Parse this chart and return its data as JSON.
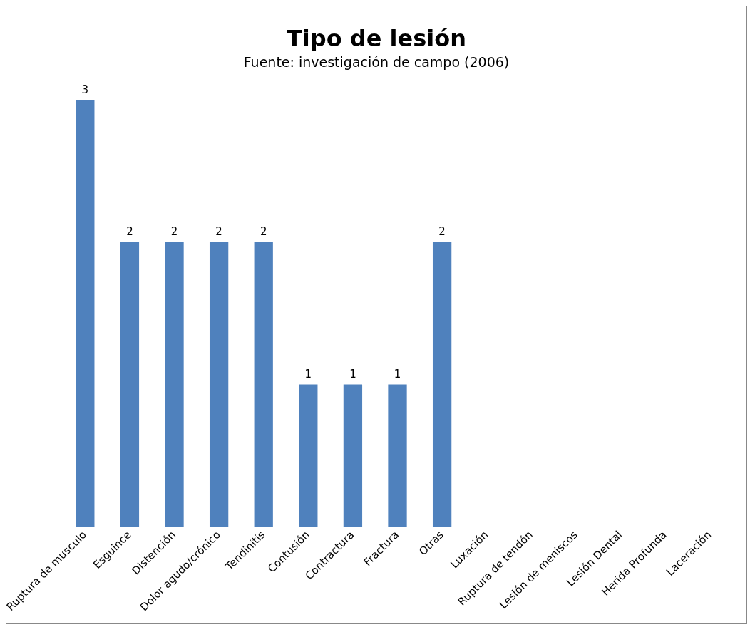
{
  "chart_data": {
    "type": "bar",
    "title": "Tipo de lesión",
    "subtitle": "Fuente: investigación de campo (2006)",
    "categories": [
      "Ruptura de musculo",
      "Esguince",
      "Distención",
      "Dolor agudo/crónico",
      "Tendinitis",
      "Contusión",
      "Contractura",
      "Fractura",
      "Otras",
      "Luxación",
      "Ruptura de tendón",
      "Lesión de meniscos",
      "Lesión Dental",
      "Herida Profunda",
      "Laceración"
    ],
    "values": [
      3,
      2,
      2,
      2,
      2,
      1,
      1,
      1,
      2,
      null,
      null,
      null,
      null,
      null,
      null
    ],
    "value_labels": [
      "3",
      "2",
      "2",
      "2",
      "2",
      "1",
      "1",
      "1",
      "2",
      null,
      null,
      null,
      null,
      null,
      null
    ],
    "color": "#4f81bd",
    "grid": false,
    "legend": false
  }
}
